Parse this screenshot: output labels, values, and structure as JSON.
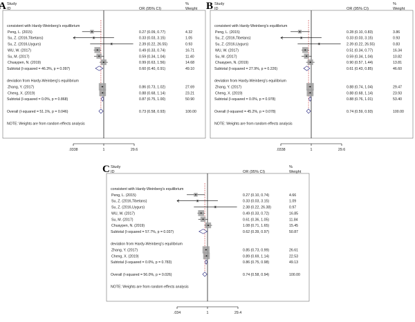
{
  "chart_data": [
    {
      "type": "forest",
      "panel_label": "A",
      "header": {
        "study": "Study",
        "id": "ID",
        "or": "OR (95% CI)",
        "pct": "%",
        "weight": "Weight"
      },
      "null_value": 1,
      "axis": {
        "min": 0.0338,
        "max": 29.6,
        "ticks": [
          ".0338",
          "1",
          "29.6"
        ],
        "scale": "log"
      },
      "overall_line": 0.73,
      "rows": [
        {
          "kind": "section",
          "label": "consistent with Hardy-Weinberg's equilibrium"
        },
        {
          "kind": "study",
          "label": "Peng, L. (2015)",
          "or": 0.27,
          "lo": 0.09,
          "hi": 0.77,
          "ci_text": "0.27 (0.09, 0.77)",
          "w": "4.32",
          "wv": 4.32
        },
        {
          "kind": "study",
          "label": "Su, Z. (2016,Tibetans)",
          "or": 0.33,
          "lo": 0.03,
          "hi": 3.15,
          "ci_text": "0.33 (0.03, 3.15)",
          "w": "1.05",
          "wv": 1.05
        },
        {
          "kind": "study",
          "label": "Su, Z. (2016,Uygurs)",
          "or": 2.39,
          "lo": 0.22,
          "hi": 26.55,
          "ci_text": "2.39 (0.22, 26.55)",
          "w": "0.93",
          "wv": 0.93
        },
        {
          "kind": "study",
          "label": "WU, W. (2017)",
          "or": 0.49,
          "lo": 0.33,
          "hi": 0.74,
          "ci_text": "0.49 (0.33, 0.74)",
          "w": "16.71",
          "wv": 16.71
        },
        {
          "kind": "study",
          "label": "Su, M. (2017)",
          "or": 0.59,
          "lo": 0.34,
          "hi": 1.04,
          "ci_text": "0.59 (0.34, 1.04)",
          "w": "11.40",
          "wv": 11.4
        },
        {
          "kind": "study",
          "label": "Chuaypen, N. (2019)",
          "or": 0.99,
          "lo": 0.63,
          "hi": 1.56,
          "ci_text": "0.99 (0.63, 1.56)",
          "w": "14.68",
          "wv": 14.68
        },
        {
          "kind": "subtotal",
          "label": "Subtotal  (I-squared = 46.3%, p = 0.097)",
          "or": 0.6,
          "lo": 0.4,
          "hi": 0.91,
          "ci_text": "0.60 (0.40, 0.91)",
          "w": "49.10"
        },
        {
          "kind": "blank"
        },
        {
          "kind": "section",
          "label": "deviation from Hardy-Weinberg's equilibrium"
        },
        {
          "kind": "study",
          "label": "Zhang, Y. (2017)",
          "or": 0.86,
          "lo": 0.73,
          "hi": 1.02,
          "ci_text": "0.86 (0.73, 1.02)",
          "w": "27.69",
          "wv": 27.69
        },
        {
          "kind": "study",
          "label": "Cheng, X. (2019)",
          "or": 0.88,
          "lo": 0.68,
          "hi": 1.14,
          "ci_text": "0.88 (0.68, 1.14)",
          "w": "23.21",
          "wv": 23.21
        },
        {
          "kind": "subtotal",
          "label": "Subtotal  (I-squared = 0.0%, p = 0.868)",
          "or": 0.87,
          "lo": 0.75,
          "hi": 1.0,
          "ci_text": "0.87 (0.75, 1.00)",
          "w": "50.90"
        },
        {
          "kind": "blank"
        },
        {
          "kind": "overall",
          "label": "Overall  (I-squared = 51.1%, p = 0.046)",
          "or": 0.73,
          "lo": 0.58,
          "hi": 0.93,
          "ci_text": "0.73 (0.58, 0.93)",
          "w": "100.00"
        },
        {
          "kind": "blank"
        },
        {
          "kind": "note",
          "label": "NOTE: Weights are from random effects analysis"
        }
      ]
    },
    {
      "type": "forest",
      "panel_label": "B",
      "header": {
        "study": "Study",
        "id": "ID",
        "or": "OR (95% CI)",
        "pct": "%",
        "weight": "Weight"
      },
      "null_value": 1,
      "axis": {
        "min": 0.0338,
        "max": 29.6,
        "ticks": [
          ".0338",
          "1",
          "29.6"
        ],
        "scale": "log"
      },
      "overall_line": 0.74,
      "rows": [
        {
          "kind": "section",
          "label": "consistent with Hardy-Weinberg's equilibrium"
        },
        {
          "kind": "study",
          "label": "Peng, L. (2015)",
          "or": 0.28,
          "lo": 0.1,
          "hi": 0.83,
          "ci_text": "0.28 (0.10, 0.83)",
          "w": "3.86",
          "wv": 3.86
        },
        {
          "kind": "study",
          "label": "Su, Z. (2016,Tibetans)",
          "or": 0.33,
          "lo": 0.03,
          "hi": 3.15,
          "ci_text": "0.33 (0.03, 3.15)",
          "w": "0.93",
          "wv": 0.93
        },
        {
          "kind": "study",
          "label": "Su, Z. (2016,Uygurs)",
          "or": 2.39,
          "lo": 0.22,
          "hi": 26.55,
          "ci_text": "2.39 (0.22, 26.55)",
          "w": "0.83",
          "wv": 0.83
        },
        {
          "kind": "study",
          "label": "WU, W. (2017)",
          "or": 0.51,
          "lo": 0.34,
          "hi": 0.77,
          "ci_text": "0.51 (0.34, 0.77)",
          "w": "16.34",
          "wv": 16.34
        },
        {
          "kind": "study",
          "label": "Su, M. (2017)",
          "or": 0.59,
          "lo": 0.34,
          "hi": 1.04,
          "ci_text": "0.59 (0.34, 1.04)",
          "w": "10.82",
          "wv": 10.82
        },
        {
          "kind": "study",
          "label": "Chuaypen, N. (2019)",
          "or": 0.9,
          "lo": 0.57,
          "hi": 1.44,
          "ci_text": "0.90 (0.57, 1.44)",
          "w": "13.81",
          "wv": 13.81
        },
        {
          "kind": "subtotal",
          "label": "Subtotal  (I-squared = 27.9%, p = 0.226)",
          "or": 0.61,
          "lo": 0.43,
          "hi": 0.85,
          "ci_text": "0.61 (0.43, 0.85)",
          "w": "46.60"
        },
        {
          "kind": "blank"
        },
        {
          "kind": "section",
          "label": "deviation from Hardy-Weinberg's equilibrium"
        },
        {
          "kind": "study",
          "label": "Zhang, Y. (2017)",
          "or": 0.88,
          "lo": 0.74,
          "hi": 1.04,
          "ci_text": "0.88 (0.74, 1.04)",
          "w": "29.47",
          "wv": 29.47
        },
        {
          "kind": "study",
          "label": "Cheng, X. (2019)",
          "or": 0.88,
          "lo": 0.68,
          "hi": 1.14,
          "ci_text": "0.88 (0.68, 1.14)",
          "w": "23.93",
          "wv": 23.93
        },
        {
          "kind": "subtotal",
          "label": "Subtotal  (I-squared = 0.0%, p = 0.978)",
          "or": 0.88,
          "lo": 0.76,
          "hi": 1.01,
          "ci_text": "0.88 (0.76, 1.01)",
          "w": "53.40"
        },
        {
          "kind": "blank"
        },
        {
          "kind": "overall",
          "label": "Overall  (I-squared = 45.2%, p = 0.078)",
          "or": 0.74,
          "lo": 0.59,
          "hi": 0.93,
          "ci_text": "0.74 (0.59, 0.93)",
          "w": "100.00"
        },
        {
          "kind": "blank"
        },
        {
          "kind": "note",
          "label": "NOTE: Weights are from random effects analysis"
        }
      ]
    },
    {
      "type": "forest",
      "panel_label": "C",
      "header": {
        "study": "Study",
        "id": "ID",
        "or": "OR (95% CI)",
        "pct": "%",
        "weight": "Weight"
      },
      "null_value": 1,
      "axis": {
        "min": 0.034,
        "max": 29.4,
        "ticks": [
          ".034",
          "1",
          "29.4"
        ],
        "scale": "log"
      },
      "overall_line": 0.74,
      "rows": [
        {
          "kind": "section",
          "label": "consistent with Hardy-Weinberg's equilibrium"
        },
        {
          "kind": "study",
          "label": "Peng, L. (2015)",
          "or": 0.27,
          "lo": 0.1,
          "hi": 0.74,
          "ci_text": "0.27 (0.10, 0.74)",
          "w": "4.66",
          "wv": 4.66
        },
        {
          "kind": "study",
          "label": "Su, Z. (2016,Tibetans)",
          "or": 0.33,
          "lo": 0.03,
          "hi": 3.15,
          "ci_text": "0.33 (0.03, 3.15)",
          "w": "1.09",
          "wv": 1.09
        },
        {
          "kind": "study",
          "label": "Su, Z. (2016,Uygurs)",
          "or": 2.38,
          "lo": 0.22,
          "hi": 26.38,
          "ci_text": "2.38 (0.22, 26.38)",
          "w": "0.97",
          "wv": 0.97
        },
        {
          "kind": "study",
          "label": "WU, W. (2017)",
          "or": 0.49,
          "lo": 0.33,
          "hi": 0.72,
          "ci_text": "0.49 (0.33, 0.72)",
          "w": "16.85",
          "wv": 16.85
        },
        {
          "kind": "study",
          "label": "Su, M. (2017)",
          "or": 0.61,
          "lo": 0.36,
          "hi": 1.05,
          "ci_text": "0.61 (0.36, 1.05)",
          "w": "11.84",
          "wv": 11.84
        },
        {
          "kind": "study",
          "label": "Chuaypen, N. (2019)",
          "or": 1.08,
          "lo": 0.71,
          "hi": 1.65,
          "ci_text": "1.08 (0.71, 1.65)",
          "w": "15.45",
          "wv": 15.45
        },
        {
          "kind": "subtotal",
          "label": "Subtotal  (I-squared = 57.7%, p = 0.037)",
          "or": 0.62,
          "lo": 0.39,
          "hi": 0.97,
          "ci_text": "0.62 (0.39, 0.97)",
          "w": "50.87"
        },
        {
          "kind": "blank"
        },
        {
          "kind": "section",
          "label": "deviation from Hardy-Weinberg's equilibrium"
        },
        {
          "kind": "study",
          "label": "Zhang, Y. (2017)",
          "or": 0.85,
          "lo": 0.73,
          "hi": 0.99,
          "ci_text": "0.85 (0.73, 0.99)",
          "w": "26.61",
          "wv": 26.61
        },
        {
          "kind": "study",
          "label": "Cheng, X. (2019)",
          "or": 0.89,
          "lo": 0.69,
          "hi": 1.14,
          "ci_text": "0.89 (0.69, 1.14)",
          "w": "22.53",
          "wv": 22.53
        },
        {
          "kind": "subtotal",
          "label": "Subtotal  (I-squared = 0.0%, p = 0.783)",
          "or": 0.86,
          "lo": 0.75,
          "hi": 0.98,
          "ci_text": "0.86 (0.75, 0.98)",
          "w": "49.13"
        },
        {
          "kind": "blank"
        },
        {
          "kind": "overall",
          "label": "Overall  (I-squared = 56.0%, p = 0.026)",
          "or": 0.74,
          "lo": 0.58,
          "hi": 0.94,
          "ci_text": "0.74 (0.58, 0.94)",
          "w": "100.00"
        },
        {
          "kind": "blank"
        },
        {
          "kind": "note",
          "label": "NOTE: Weights are from random effects analysis"
        }
      ]
    }
  ]
}
